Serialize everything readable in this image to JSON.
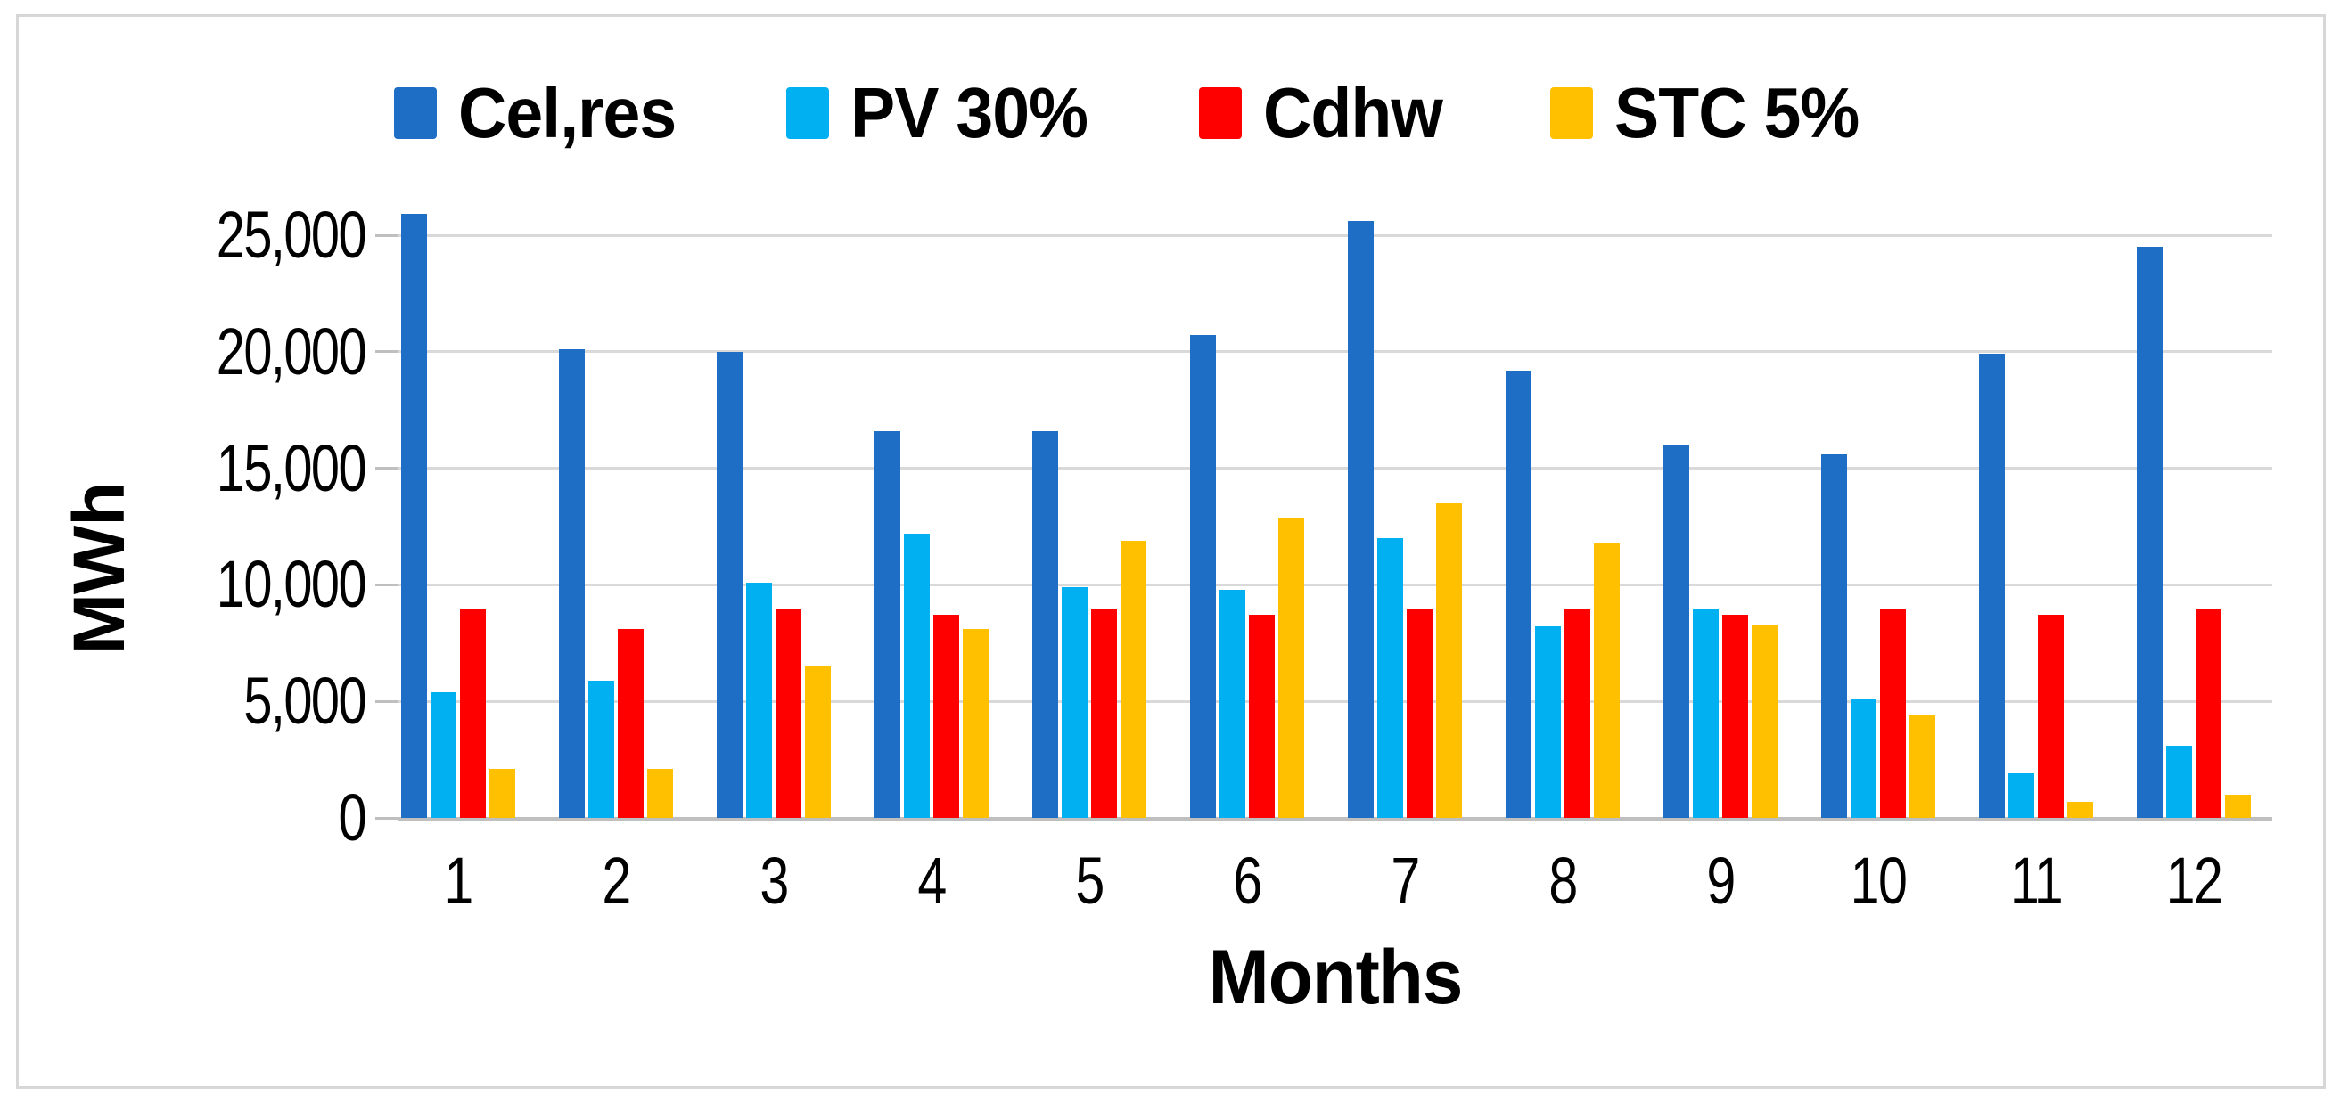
{
  "figure": {
    "ylabel": "MWh",
    "xlabel": "Months"
  },
  "chart_data": {
    "type": "bar",
    "title": "",
    "xlabel": "Months",
    "ylabel": "MWh",
    "ylim": [
      0,
      27500
    ],
    "yticks": [
      0,
      5000,
      10000,
      15000,
      20000,
      25000
    ],
    "ytick_labels": [
      "0",
      "5,000",
      "10,000",
      "15,000",
      "20,000",
      "25,000"
    ],
    "categories": [
      "1",
      "2",
      "3",
      "4",
      "5",
      "6",
      "7",
      "8",
      "9",
      "10",
      "11",
      "12"
    ],
    "grid": "horizontal-only",
    "legend_position": "top-center",
    "series": [
      {
        "name": "Cel,res",
        "color": "#1E6EC6",
        "values": [
          25900,
          20100,
          20000,
          16600,
          16600,
          20700,
          25600,
          19200,
          16000,
          15600,
          19900,
          24500
        ]
      },
      {
        "name": "PV 30%",
        "color": "#00B0F0",
        "values": [
          5400,
          5900,
          10100,
          12200,
          9900,
          9800,
          12000,
          8200,
          9000,
          5100,
          1900,
          3100
        ]
      },
      {
        "name": "Cdhw",
        "color": "#FF0000",
        "values": [
          9000,
          8100,
          9000,
          8700,
          9000,
          8700,
          9000,
          9000,
          8700,
          9000,
          8700,
          9000
        ]
      },
      {
        "name": "STC 5%",
        "color": "#FFC000",
        "values": [
          2100,
          2100,
          6500,
          8100,
          11900,
          12900,
          13500,
          11800,
          8300,
          4400,
          700,
          1000
        ]
      }
    ],
    "axis_colors": {
      "gridline": "#D9D9D9",
      "baseline": "#BFBFBF",
      "text": "#000000"
    }
  }
}
